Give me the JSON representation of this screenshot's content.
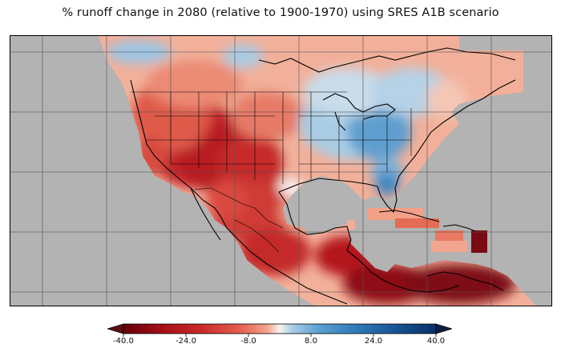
{
  "title": "% runoff change in 2080 (relative to 1900-1970) using SRES A1B scenario",
  "colorbar": {
    "min": -40,
    "max": 40,
    "tick_labels": [
      "-40.0",
      "-24.0",
      "-8.0",
      "8.0",
      "24.0",
      "40.0"
    ],
    "colors": {
      "extend_low": "#5a0e14",
      "c_-40": "#67000d",
      "c_-32": "#a50f15",
      "c_-24": "#cb2a2a",
      "c_-16": "#e5604f",
      "c_-8": "#f4a48e",
      "c_0": "#f7f3f0",
      "c_8": "#a8cde6",
      "c_16": "#5aa1d1",
      "c_24": "#2f78b8",
      "c_32": "#165394",
      "c_40": "#0a2f66",
      "extend_high": "#0b1f44"
    }
  },
  "map": {
    "background_no_data": "#b3b3b3",
    "gridlines": true,
    "coastline_color": "#000000"
  }
}
